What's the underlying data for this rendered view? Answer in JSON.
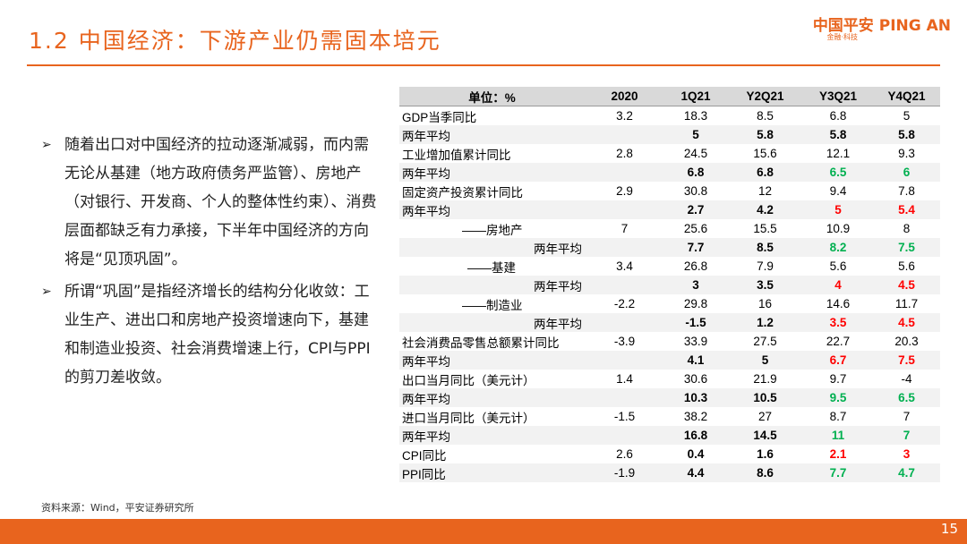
{
  "header": {
    "title": "1.2 中国经济：下游产业仍需固本培元",
    "logo": "中国平安 PING AN",
    "logo_sub": "金融·科技"
  },
  "bullets": [
    "随着出口对中国经济的拉动逐渐减弱，而内需无论从基建（地方政府债务严监管）、房地产（对银行、开发商、个人的整体性约束）、消费层面都缺乏有力承接，下半年中国经济的方向将是“见顶巩固”。",
    "所谓“巩固”是指经济增长的结构分化收敛：工业生产、进出口和房地产投资增速向下，基建和制造业投资、社会消费增速上行，CPI与PPI的剪刀差收敛。"
  ],
  "table": {
    "columns": [
      "单位：%",
      "2020",
      "1Q21",
      "Y2Q21",
      "Y3Q21",
      "Y4Q21"
    ],
    "red": "#ff0000",
    "green": "#00b050",
    "rows": [
      {
        "label": "GDP当季同比",
        "values": [
          3.2,
          18.3,
          8.5,
          6.8,
          5
        ]
      },
      {
        "label": "两年平均",
        "values": [
          null,
          5,
          5.8,
          5.8,
          5.8
        ]
      },
      {
        "label": "工业增加值累计同比",
        "values": [
          2.8,
          24.5,
          15.6,
          12.1,
          9.3
        ]
      },
      {
        "label": "两年平均",
        "values": [
          null,
          6.8,
          6.8,
          6.5,
          6
        ],
        "colors": [
          null,
          null,
          null,
          "green",
          "green"
        ]
      },
      {
        "label": "固定资产投资累计同比",
        "values": [
          2.9,
          30.8,
          12,
          9.4,
          7.8
        ]
      },
      {
        "label": "两年平均",
        "values": [
          null,
          2.7,
          4.2,
          5,
          5.4
        ],
        "colors": [
          null,
          null,
          null,
          "red",
          "red"
        ]
      },
      {
        "label": "——房地产",
        "values": [
          7,
          25.6,
          15.5,
          10.9,
          8
        ]
      },
      {
        "label": "两年平均",
        "values": [
          null,
          7.7,
          8.5,
          8.2,
          7.5
        ],
        "colors": [
          null,
          null,
          null,
          "green",
          "green"
        ]
      },
      {
        "label": "——基建",
        "values": [
          3.4,
          26.8,
          7.9,
          5.6,
          5.6
        ]
      },
      {
        "label": "两年平均",
        "values": [
          null,
          3,
          3.5,
          4,
          4.5
        ],
        "colors": [
          null,
          null,
          null,
          "red",
          "red"
        ]
      },
      {
        "label": "——制造业",
        "values": [
          -2.2,
          29.8,
          16,
          14.6,
          11.7
        ]
      },
      {
        "label": "两年平均",
        "values": [
          null,
          -1.5,
          1.2,
          3.5,
          4.5
        ],
        "colors": [
          null,
          null,
          null,
          "red",
          "red"
        ]
      },
      {
        "label": "社会消费品零售总额累计同比",
        "values": [
          -3.9,
          33.9,
          27.5,
          22.7,
          20.3
        ]
      },
      {
        "label": "两年平均",
        "values": [
          null,
          4.1,
          5,
          6.7,
          7.5
        ],
        "colors": [
          null,
          null,
          null,
          "red",
          "red"
        ]
      },
      {
        "label": "出口当月同比（美元计）",
        "values": [
          1.4,
          30.6,
          21.9,
          9.7,
          -4
        ]
      },
      {
        "label": "两年平均",
        "values": [
          null,
          10.3,
          10.5,
          9.5,
          6.5
        ],
        "colors": [
          null,
          null,
          null,
          "green",
          "green"
        ]
      },
      {
        "label": "进口当月同比（美元计）",
        "values": [
          -1.5,
          38.2,
          27,
          8.7,
          7
        ]
      },
      {
        "label": "两年平均",
        "values": [
          null,
          16.8,
          14.5,
          11,
          7
        ],
        "colors": [
          null,
          null,
          null,
          "green",
          "green"
        ]
      },
      {
        "label": "CPI同比",
        "values": [
          2.6,
          0.4,
          1.6,
          2.1,
          3
        ],
        "colors": [
          null,
          null,
          null,
          "red",
          "red"
        ]
      },
      {
        "label": "PPI同比",
        "values": [
          -1.9,
          4.4,
          8.6,
          7.7,
          4.7
        ],
        "colors": [
          null,
          null,
          null,
          "green",
          "green"
        ]
      }
    ]
  },
  "footer": {
    "source": "资料来源：Wind，平安证券研究所",
    "page": "15"
  }
}
